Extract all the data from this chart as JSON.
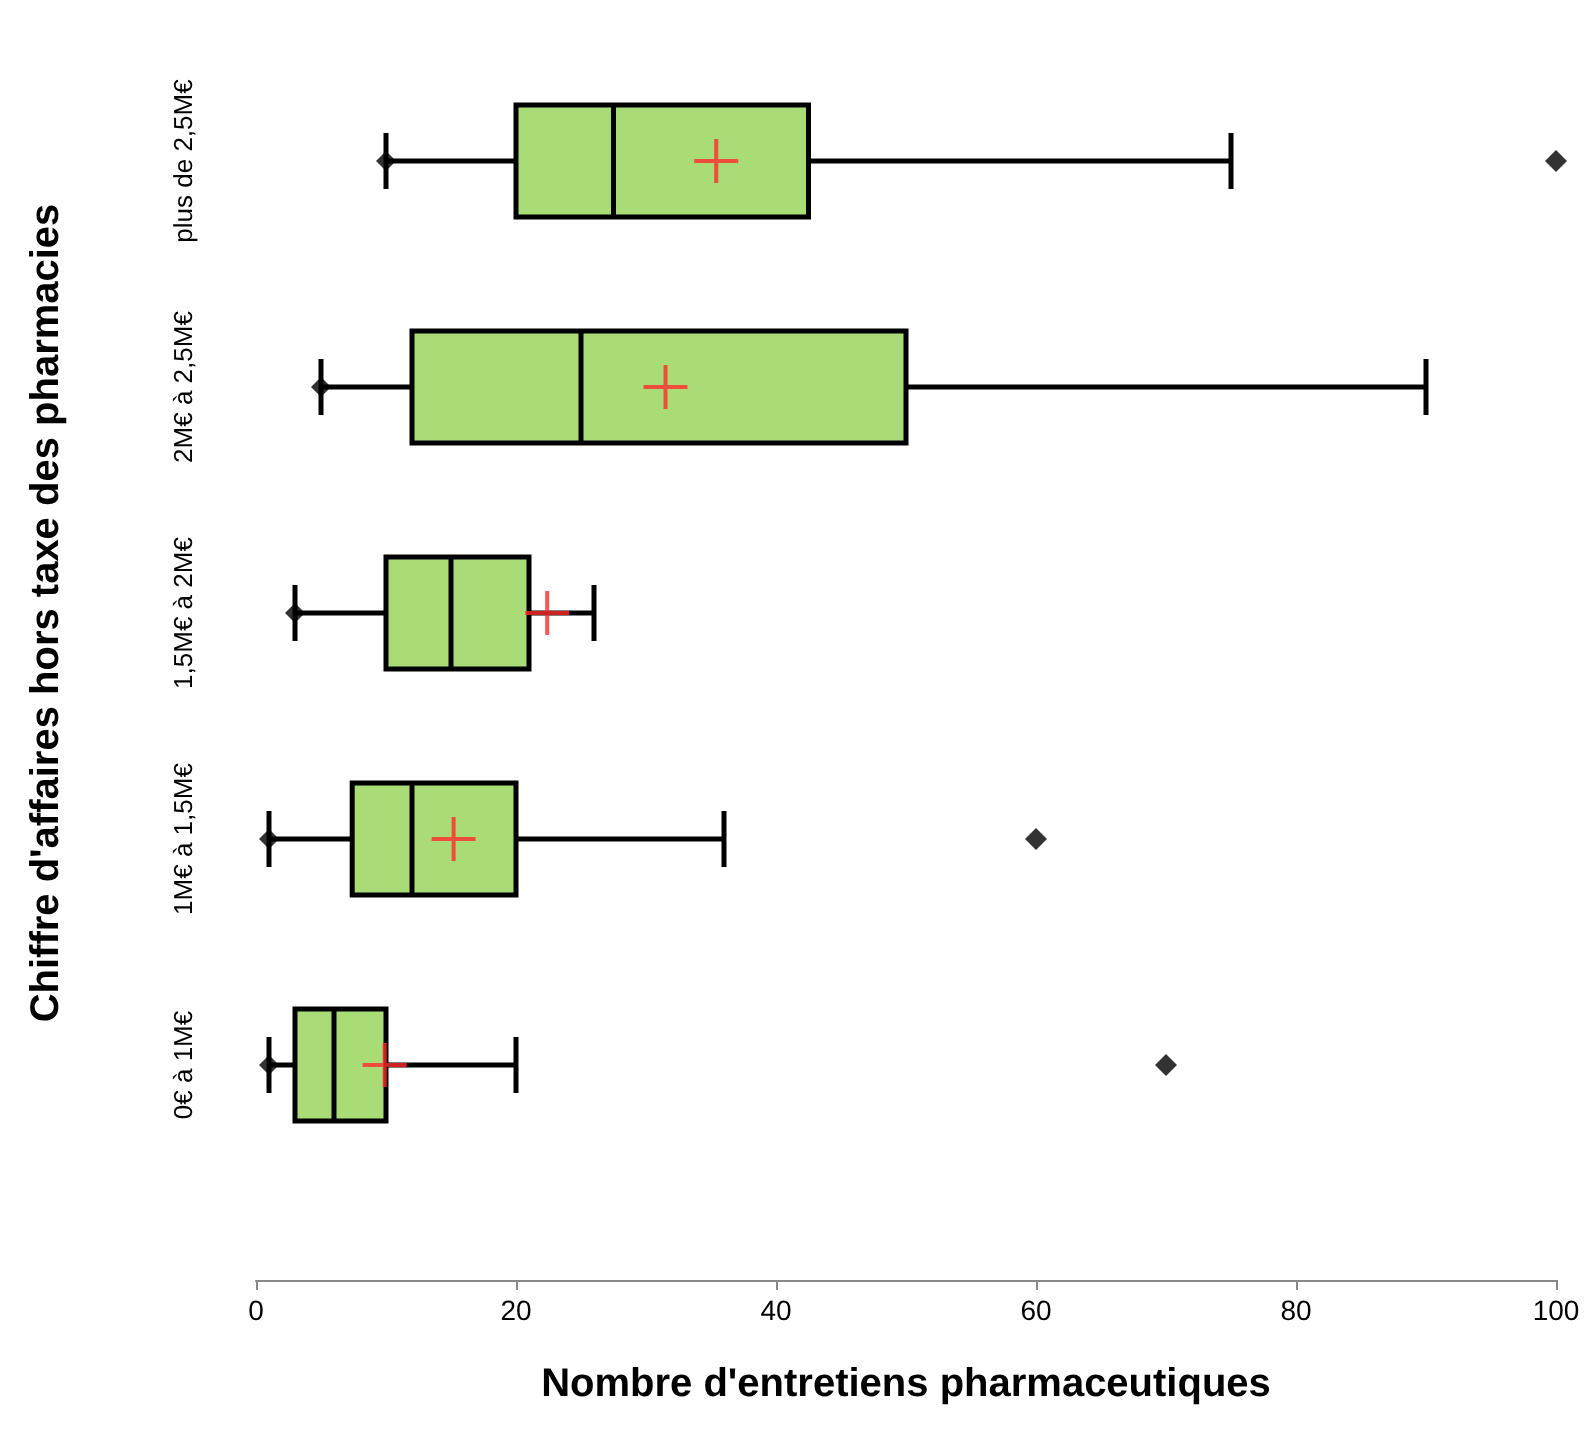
{
  "chart_data": {
    "type": "box",
    "orientation": "horizontal",
    "xlabel": "Nombre d'entretiens pharmaceutiques",
    "ylabel": "Chiffre d'affaires hors taxe des pharmacies",
    "categories": [
      "plus de 2,5M€",
      "2M€ à 2,5M€",
      "1,5M€ à 2M€",
      "1M€ à 1,5M€",
      "0€ à 1M€"
    ],
    "color": "#a9db77",
    "boxes": [
      {
        "low": 10,
        "q1": 20,
        "median": 27.5,
        "q3": 42.5,
        "high": 75,
        "outliers": [
          100
        ]
      },
      {
        "low": 5,
        "q1": 12,
        "median": 25,
        "q3": 50,
        "high": 90
      },
      {
        "low": 3,
        "q1": 10,
        "median": 15,
        "q3": 21,
        "high": 26
      },
      {
        "low": 1,
        "q1": 7.4,
        "median": 12,
        "q3": 20,
        "high": 36,
        "outliers": [
          60
        ]
      },
      {
        "low": 1,
        "q1": 3,
        "median": 6,
        "q3": 10,
        "high": 20,
        "outliers": [
          70
        ]
      }
    ],
    "series": [
      {
        "type": "scatter",
        "marker": "diamond",
        "color": "#000000",
        "values": [
          10,
          5,
          3,
          1,
          1
        ]
      },
      {
        "type": "scatter",
        "marker": "cross",
        "color": "#ff2a2a",
        "values": [
          35.4,
          31.5,
          22.4,
          15.2,
          9.9
        ]
      }
    ],
    "xlim": [
      0,
      100
    ],
    "xticks": [
      0,
      20,
      40,
      60,
      80,
      100
    ]
  }
}
